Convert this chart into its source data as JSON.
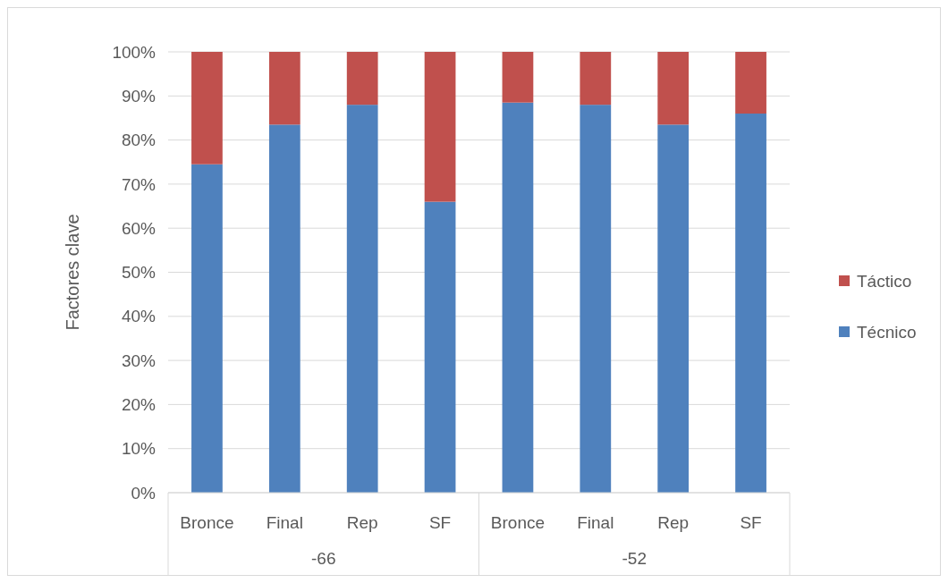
{
  "chart_data": {
    "type": "bar",
    "stacked": true,
    "ylabel": "Factores clave",
    "categories": [
      "Bronce",
      "Final",
      "Rep",
      "SF",
      "Bronce",
      "Final",
      "Rep",
      "SF"
    ],
    "series": [
      {
        "name": "Técnico",
        "color": "#4f81bd",
        "values": [
          74.5,
          83.5,
          88,
          66,
          88.5,
          88,
          83.5,
          86
        ]
      },
      {
        "name": "Táctico",
        "color": "#c0504d",
        "values": [
          25.5,
          16.5,
          12,
          34,
          11.5,
          12,
          16.5,
          14
        ]
      }
    ],
    "ylim": [
      0,
      100
    ],
    "yticks": [
      {
        "value": 0,
        "label": "0%"
      },
      {
        "value": 10,
        "label": "10%"
      },
      {
        "value": 20,
        "label": "20%"
      },
      {
        "value": 30,
        "label": "30%"
      },
      {
        "value": 40,
        "label": "40%"
      },
      {
        "value": 50,
        "label": "50%"
      },
      {
        "value": 60,
        "label": "60%"
      },
      {
        "value": 70,
        "label": "70%"
      },
      {
        "value": 80,
        "label": "80%"
      },
      {
        "value": 90,
        "label": "90%"
      },
      {
        "value": 100,
        "label": "100%"
      }
    ],
    "grid": "y",
    "legend": "right",
    "annotations": [
      "-66",
      "-52"
    ]
  }
}
